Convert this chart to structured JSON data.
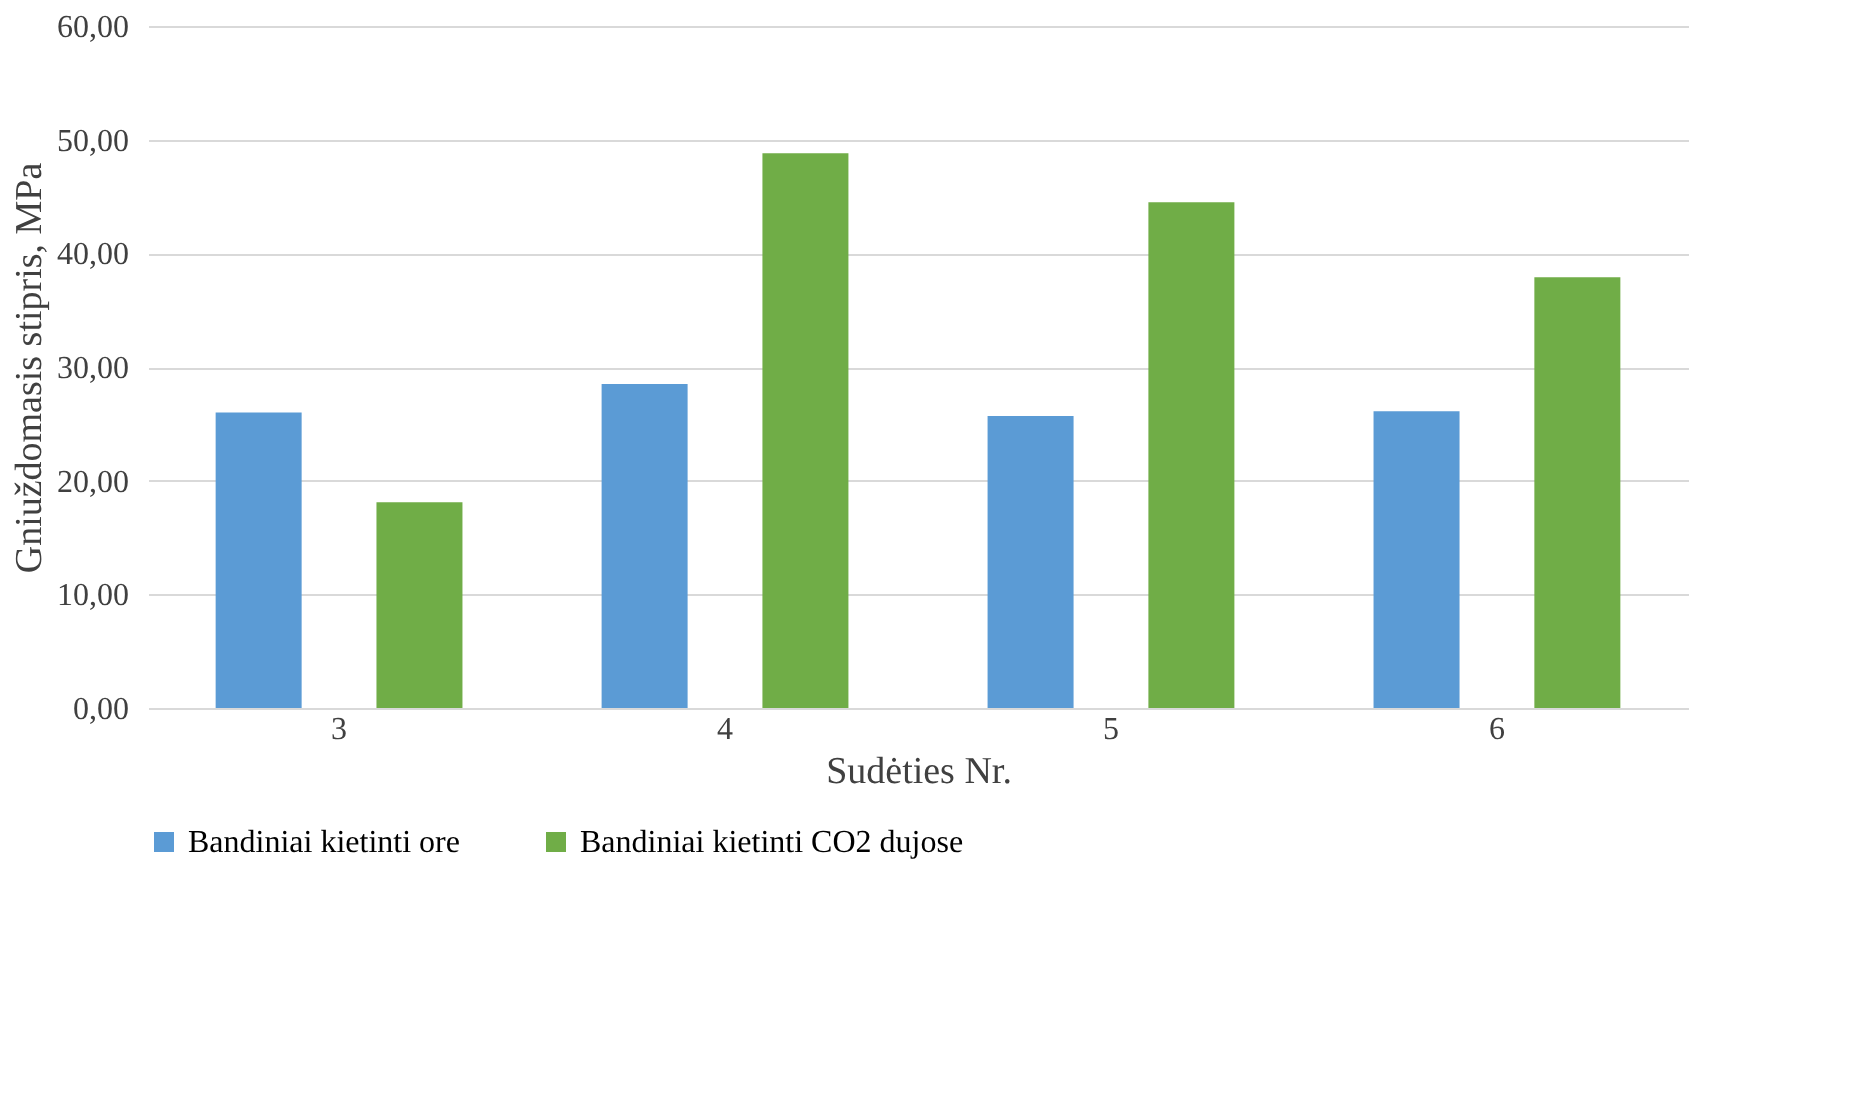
{
  "chart_data": {
    "type": "bar",
    "xlabel": "Sudėties Nr.",
    "ylabel": "Gniuždomasis stipris, MPa",
    "categories": [
      "3",
      "4",
      "5",
      "6"
    ],
    "series": [
      {
        "name": "Bandiniai kietinti ore",
        "color": "#5b9bd5",
        "values": [
          26.0,
          28.5,
          25.7,
          26.1
        ]
      },
      {
        "name": "Bandiniai kietinti CO2 dujose",
        "color": "#70ad47",
        "values": [
          18.1,
          48.8,
          44.5,
          37.9
        ]
      }
    ],
    "ylim": [
      0,
      60
    ],
    "yticks": [
      {
        "value": 0,
        "label": "0,00"
      },
      {
        "value": 10,
        "label": "10,00"
      },
      {
        "value": 20,
        "label": "20,00"
      },
      {
        "value": 30,
        "label": "30,00"
      },
      {
        "value": 40,
        "label": "40,00"
      },
      {
        "value": 50,
        "label": "50,00"
      },
      {
        "value": 60,
        "label": "60,00"
      }
    ],
    "grid": "y",
    "legend": "bottom"
  }
}
